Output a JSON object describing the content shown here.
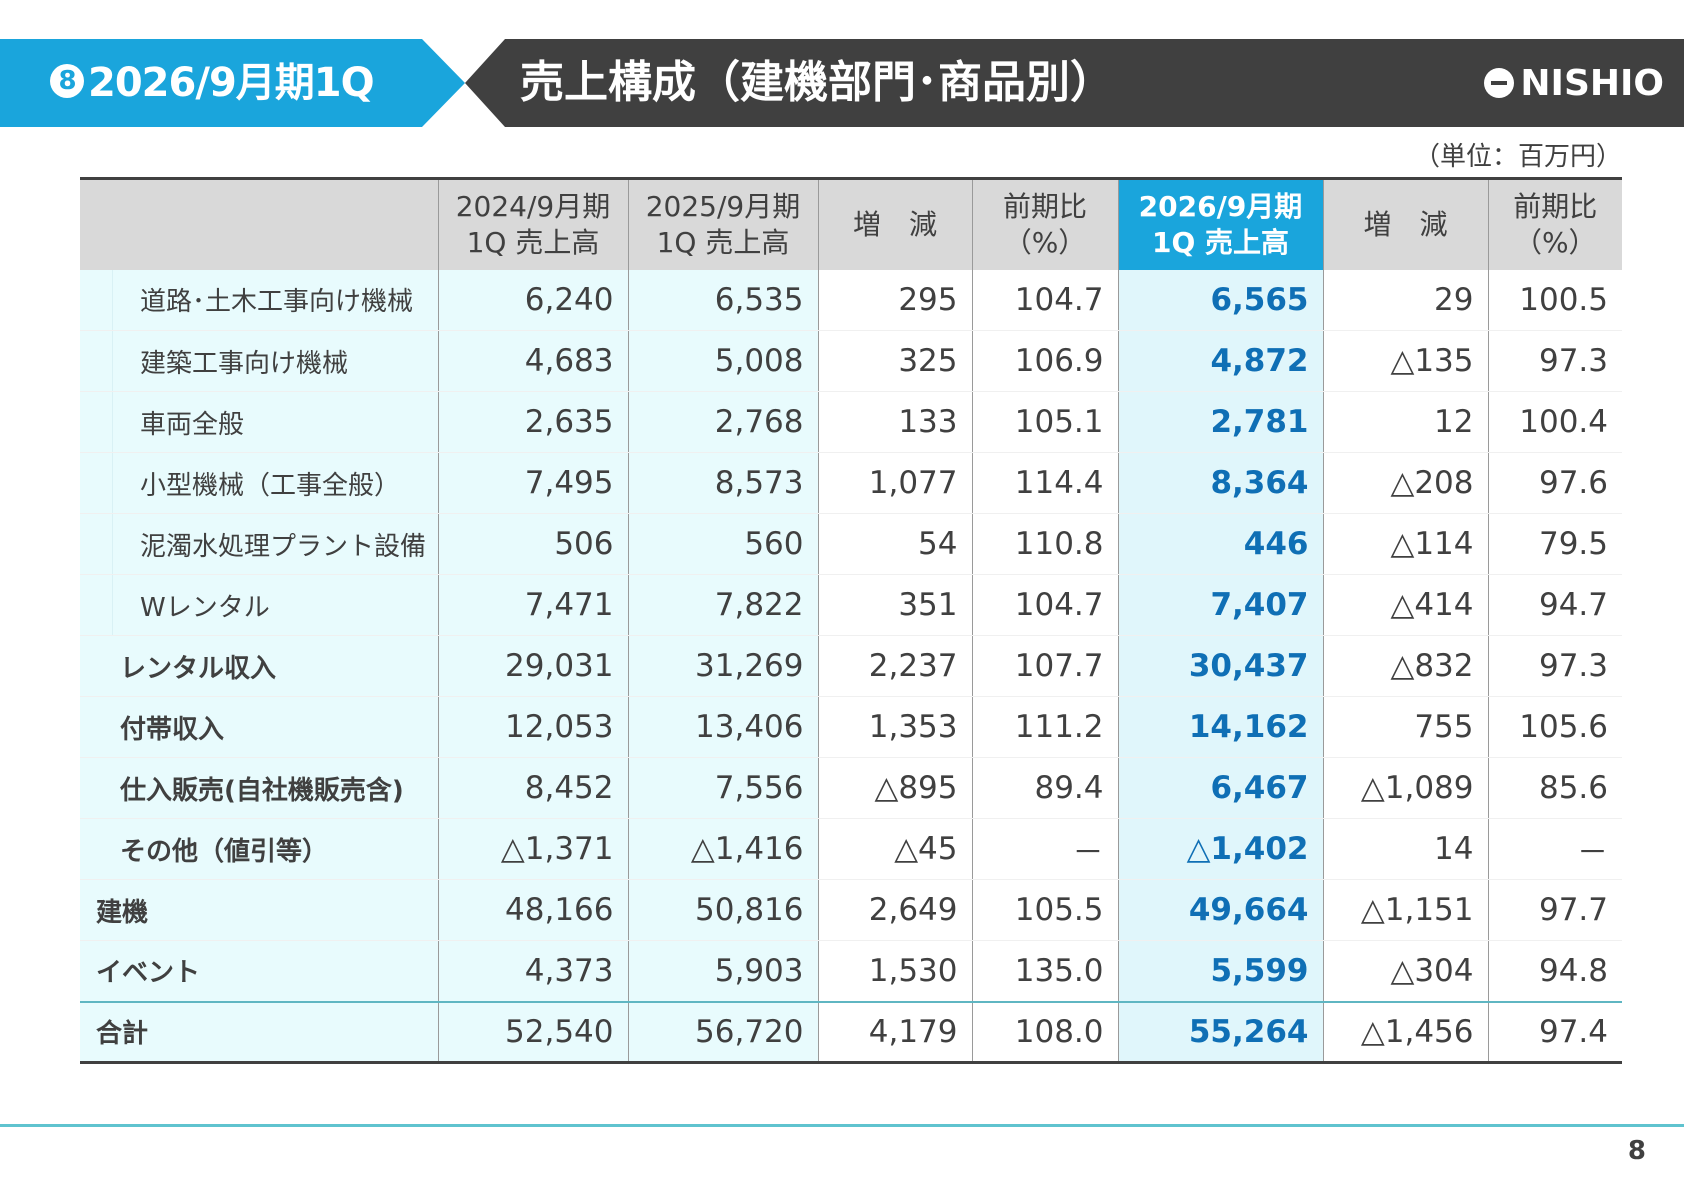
{
  "header": {
    "section_number": "8",
    "period": "2026/9月期1Q",
    "title": "売上構成（建機部門･商品別）",
    "logo": "NISHIO"
  },
  "unit": "（単位：百万円）",
  "table": {
    "columns": [
      "",
      "2024/9月期\n1Q 売上高",
      "2025/9月期\n1Q 売上高",
      "増　減",
      "前期比\n（%）",
      "2026/9月期\n1Q 売上高",
      "増　減",
      "前期比\n（%）"
    ],
    "rows": [
      {
        "label": "道路･土木工事向け機械",
        "level": 1,
        "values": [
          "6,240",
          "6,535",
          "295",
          "104.7",
          "6,565",
          "29",
          "100.5"
        ]
      },
      {
        "label": "建築工事向け機械",
        "level": 1,
        "values": [
          "4,683",
          "5,008",
          "325",
          "106.9",
          "4,872",
          "△135",
          "97.3"
        ]
      },
      {
        "label": "車両全般",
        "level": 1,
        "values": [
          "2,635",
          "2,768",
          "133",
          "105.1",
          "2,781",
          "12",
          "100.4"
        ]
      },
      {
        "label": "小型機械（工事全般）",
        "level": 1,
        "values": [
          "7,495",
          "8,573",
          "1,077",
          "114.4",
          "8,364",
          "△208",
          "97.6"
        ]
      },
      {
        "label": "泥濁水処理プラント設備",
        "level": 1,
        "values": [
          "506",
          "560",
          "54",
          "110.8",
          "446",
          "△114",
          "79.5"
        ]
      },
      {
        "label": "Wレンタル",
        "level": 1,
        "values": [
          "7,471",
          "7,822",
          "351",
          "104.7",
          "7,407",
          "△414",
          "94.7"
        ]
      },
      {
        "label": "レンタル収入",
        "level": 2,
        "values": [
          "29,031",
          "31,269",
          "2,237",
          "107.7",
          "30,437",
          "△832",
          "97.3"
        ]
      },
      {
        "label": "付帯収入",
        "level": 2,
        "values": [
          "12,053",
          "13,406",
          "1,353",
          "111.2",
          "14,162",
          "755",
          "105.6"
        ]
      },
      {
        "label": "仕入販売(自社機販売含)",
        "level": 2,
        "values": [
          "8,452",
          "7,556",
          "△895",
          "89.4",
          "6,467",
          "△1,089",
          "85.6"
        ]
      },
      {
        "label": "その他（値引等）",
        "level": 2,
        "values": [
          "△1,371",
          "△1,416",
          "△45",
          "－",
          "△1,402",
          "14",
          "－"
        ]
      },
      {
        "label": "建機",
        "level": 3,
        "values": [
          "48,166",
          "50,816",
          "2,649",
          "105.5",
          "49,664",
          "△1,151",
          "97.7"
        ]
      },
      {
        "label": "イベント",
        "level": 3,
        "values": [
          "4,373",
          "5,903",
          "1,530",
          "135.0",
          "5,599",
          "△304",
          "94.8"
        ]
      },
      {
        "label": "合計",
        "level": 3,
        "total": true,
        "values": [
          "52,540",
          "56,720",
          "4,179",
          "108.0",
          "55,264",
          "△1,456",
          "97.4"
        ]
      }
    ]
  },
  "page_number": "8",
  "colors": {
    "accent": "#1aa5dc",
    "dark": "#404040",
    "highlight_text": "#0f6fb5"
  }
}
